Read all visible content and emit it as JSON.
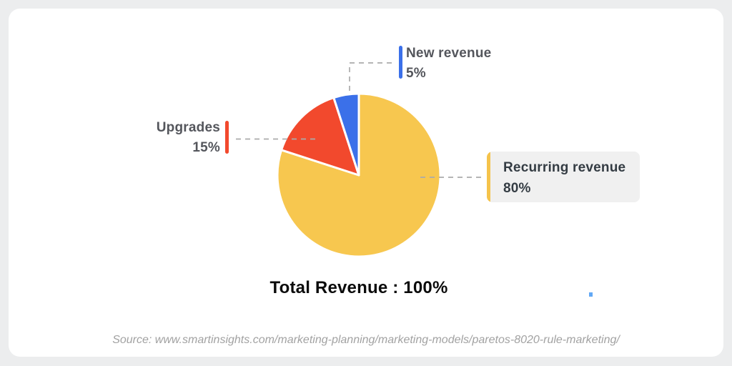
{
  "background_color": "#ECEDEE",
  "card_color": "#FFFFFF",
  "chart_data": {
    "type": "pie",
    "title": "Total Revenue : 100%",
    "total": 100,
    "unit": "%",
    "direction": "clockwise",
    "start_angle_deg": 0,
    "legend_position": "callouts",
    "connector_color": "#ABABAB",
    "slices": [
      {
        "id": "recurring-revenue",
        "label": "Recurring revenue",
        "value": 80,
        "display": "80%",
        "color": "#F7C74F"
      },
      {
        "id": "upgrades",
        "label": "Upgrades",
        "value": 15,
        "display": "15%",
        "color": "#F2492D"
      },
      {
        "id": "new-revenue",
        "label": "New revenue",
        "value": 5,
        "display": "5%",
        "color": "#3B70E9"
      }
    ]
  },
  "callouts": {
    "new_revenue": {
      "label": "New revenue",
      "value": "5%",
      "accent_color": "#3B70E9"
    },
    "upgrades": {
      "label": "Upgrades",
      "value": "15%",
      "accent_color": "#F2492D"
    },
    "recurring_revenue": {
      "label": "Recurring revenue",
      "value": "80%",
      "accent_color": "#F5C34B",
      "box_color": "#F0F0F0"
    }
  },
  "total_label": "Total Revenue : 100%",
  "source_text": "Source: www.smartinsights.com/marketing-planning/marketing-models/paretos-8020-rule-marketing/"
}
